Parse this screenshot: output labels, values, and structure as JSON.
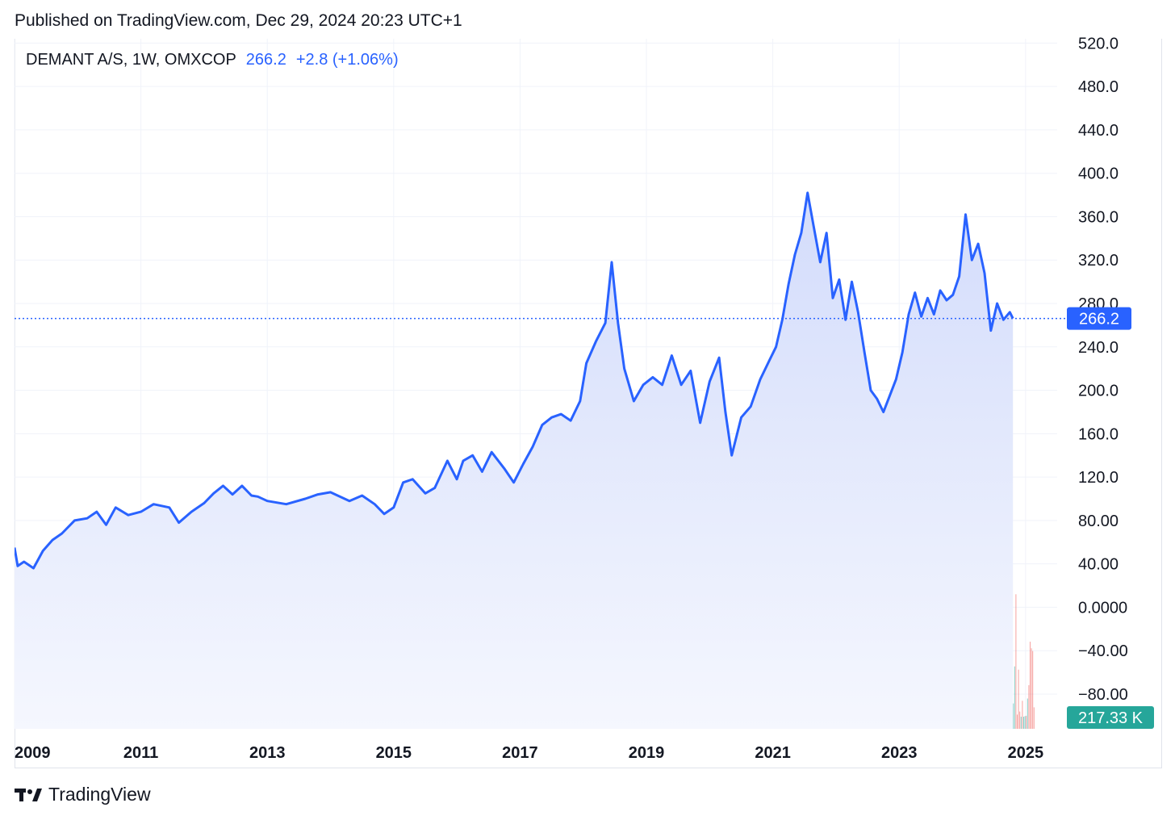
{
  "header": {
    "published": "Published on TradingView.com, Dec 29, 2024 20:23 UTC+1"
  },
  "legend": {
    "symbol": "DEMANT A/S, 1W, OMXCOP",
    "last": "266.2",
    "change": "+2.8 (+1.06%)"
  },
  "footer": {
    "brand": "TradingView",
    "logo_icon": "tradingview-logo-icon"
  },
  "colors": {
    "line": "#2962ff",
    "area_top": "#d3dcfb",
    "area_bottom": "#f5f7fe",
    "grid": "#f0f3fa",
    "vol_up": "#26a69a",
    "vol_down": "#ef5350",
    "volume_tag": "#26a69a"
  },
  "chart_data": {
    "type": "area",
    "symbol": "DEMANT A/S",
    "interval": "1W",
    "exchange": "OMXCOP",
    "last_price": 266.2,
    "last_price_label": "266.2",
    "volume_label": "217.33 K",
    "y_ticks": [
      "520.0",
      "480.0",
      "440.0",
      "400.0",
      "360.0",
      "320.0",
      "280.0",
      "240.0",
      "200.0",
      "160.0",
      "120.0",
      "80.00",
      "40.00",
      "0.0000",
      "−40.00",
      "−80.00"
    ],
    "y_tick_values": [
      520,
      480,
      440,
      400,
      360,
      320,
      280,
      240,
      200,
      160,
      120,
      80,
      40,
      0,
      -40,
      -80
    ],
    "x_ticks": [
      "2009",
      "2011",
      "2013",
      "2015",
      "2017",
      "2019",
      "2021",
      "2023",
      "2025"
    ],
    "x_tick_years": [
      2009,
      2011,
      2013,
      2015,
      2017,
      2019,
      2021,
      2023,
      2025
    ],
    "ylim": [
      -112,
      524
    ],
    "xlim": [
      2009.0,
      2025.5
    ],
    "grid": true,
    "legend": "top-left",
    "series": [
      {
        "name": "DEMANT A/S",
        "points": [
          [
            2009.0,
            55
          ],
          [
            2009.05,
            38
          ],
          [
            2009.15,
            42
          ],
          [
            2009.3,
            36
          ],
          [
            2009.45,
            52
          ],
          [
            2009.6,
            62
          ],
          [
            2009.75,
            68
          ],
          [
            2009.95,
            80
          ],
          [
            2010.15,
            82
          ],
          [
            2010.3,
            88
          ],
          [
            2010.45,
            76
          ],
          [
            2010.6,
            92
          ],
          [
            2010.8,
            85
          ],
          [
            2011.0,
            88
          ],
          [
            2011.2,
            95
          ],
          [
            2011.45,
            92
          ],
          [
            2011.6,
            78
          ],
          [
            2011.8,
            88
          ],
          [
            2012.0,
            96
          ],
          [
            2012.15,
            105
          ],
          [
            2012.3,
            112
          ],
          [
            2012.45,
            104
          ],
          [
            2012.6,
            112
          ],
          [
            2012.75,
            103
          ],
          [
            2012.85,
            102
          ],
          [
            2013.0,
            98
          ],
          [
            2013.3,
            95
          ],
          [
            2013.6,
            100
          ],
          [
            2013.8,
            104
          ],
          [
            2014.0,
            106
          ],
          [
            2014.3,
            98
          ],
          [
            2014.5,
            103
          ],
          [
            2014.7,
            95
          ],
          [
            2014.85,
            86
          ],
          [
            2015.0,
            92
          ],
          [
            2015.15,
            115
          ],
          [
            2015.3,
            118
          ],
          [
            2015.5,
            105
          ],
          [
            2015.65,
            110
          ],
          [
            2015.85,
            135
          ],
          [
            2016.0,
            118
          ],
          [
            2016.1,
            135
          ],
          [
            2016.25,
            140
          ],
          [
            2016.4,
            125
          ],
          [
            2016.55,
            143
          ],
          [
            2016.75,
            128
          ],
          [
            2016.9,
            115
          ],
          [
            2017.05,
            132
          ],
          [
            2017.2,
            148
          ],
          [
            2017.35,
            168
          ],
          [
            2017.5,
            175
          ],
          [
            2017.65,
            178
          ],
          [
            2017.8,
            172
          ],
          [
            2017.95,
            190
          ],
          [
            2018.05,
            225
          ],
          [
            2018.2,
            245
          ],
          [
            2018.35,
            262
          ],
          [
            2018.45,
            318
          ],
          [
            2018.55,
            262
          ],
          [
            2018.65,
            220
          ],
          [
            2018.8,
            190
          ],
          [
            2018.95,
            205
          ],
          [
            2019.1,
            212
          ],
          [
            2019.25,
            205
          ],
          [
            2019.4,
            232
          ],
          [
            2019.55,
            205
          ],
          [
            2019.7,
            218
          ],
          [
            2019.85,
            170
          ],
          [
            2020.0,
            208
          ],
          [
            2020.15,
            230
          ],
          [
            2020.25,
            180
          ],
          [
            2020.35,
            140
          ],
          [
            2020.5,
            175
          ],
          [
            2020.65,
            185
          ],
          [
            2020.8,
            210
          ],
          [
            2020.95,
            228
          ],
          [
            2021.05,
            240
          ],
          [
            2021.15,
            265
          ],
          [
            2021.25,
            298
          ],
          [
            2021.35,
            325
          ],
          [
            2021.45,
            345
          ],
          [
            2021.55,
            382
          ],
          [
            2021.65,
            350
          ],
          [
            2021.75,
            318
          ],
          [
            2021.85,
            345
          ],
          [
            2021.95,
            285
          ],
          [
            2022.05,
            302
          ],
          [
            2022.15,
            265
          ],
          [
            2022.25,
            300
          ],
          [
            2022.35,
            272
          ],
          [
            2022.45,
            235
          ],
          [
            2022.55,
            200
          ],
          [
            2022.65,
            192
          ],
          [
            2022.75,
            180
          ],
          [
            2022.85,
            195
          ],
          [
            2022.95,
            210
          ],
          [
            2023.05,
            235
          ],
          [
            2023.15,
            270
          ],
          [
            2023.25,
            290
          ],
          [
            2023.35,
            268
          ],
          [
            2023.45,
            285
          ],
          [
            2023.55,
            270
          ],
          [
            2023.65,
            292
          ],
          [
            2023.75,
            283
          ],
          [
            2023.85,
            288
          ],
          [
            2023.95,
            305
          ],
          [
            2024.05,
            362
          ],
          [
            2024.15,
            320
          ],
          [
            2024.25,
            335
          ],
          [
            2024.35,
            308
          ],
          [
            2024.45,
            255
          ],
          [
            2024.55,
            280
          ],
          [
            2024.65,
            265
          ],
          [
            2024.75,
            272
          ],
          [
            2024.8,
            266.2
          ]
        ]
      }
    ]
  }
}
